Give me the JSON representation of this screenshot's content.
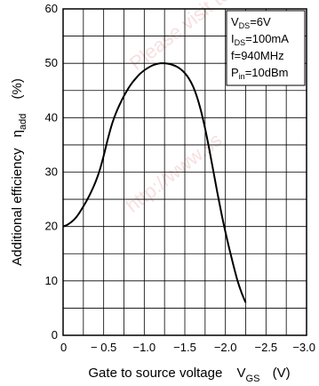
{
  "chart_data": {
    "type": "line",
    "xlabel": "Gate to source voltage",
    "xlabel_symbol": "V",
    "xlabel_sub": "GS",
    "xlabel_unit": "(V)",
    "ylabel": "Additional efficiency",
    "ylabel_symbol": "η",
    "ylabel_sub": "add",
    "ylabel_unit": "(%)",
    "xlim": [
      0,
      -3.0
    ],
    "ylim": [
      0,
      60
    ],
    "x_ticks": [
      "0",
      "− 0.5",
      "−1.0",
      "−1.5",
      "−2.0",
      "−2.5",
      "−3.0"
    ],
    "y_ticks": [
      "0",
      "10",
      "20",
      "30",
      "40",
      "50",
      "60"
    ],
    "grid": true,
    "conditions": [
      {
        "main": "V",
        "sub": "DS",
        "rest": "=6V"
      },
      {
        "main": "I",
        "sub": "DS",
        "rest": "=100mA"
      },
      {
        "main": "f=940MHz",
        "sub": "",
        "rest": ""
      },
      {
        "main": "P",
        "sub": "in",
        "rest": "=10dBm"
      }
    ],
    "series": [
      {
        "x": [
          0,
          -0.05,
          -0.1,
          -0.15,
          -0.2,
          -0.25,
          -0.3,
          -0.35,
          -0.4,
          -0.45,
          -0.5,
          -0.55,
          -0.6,
          -0.65,
          -0.7,
          -0.75,
          -0.8,
          -0.85,
          -0.9,
          -0.95,
          -1.0,
          -1.05,
          -1.1,
          -1.15,
          -1.2,
          -1.25,
          -1.3,
          -1.35,
          -1.4,
          -1.45,
          -1.5,
          -1.55,
          -1.6,
          -1.65,
          -1.7,
          -1.75,
          -1.8,
          -1.85,
          -1.9,
          -1.95,
          -2.0,
          -2.05,
          -2.1,
          -2.15,
          -2.2,
          -2.25
        ],
        "values": [
          20.0,
          20.3,
          20.8,
          21.5,
          22.5,
          23.7,
          25.0,
          26.5,
          28.2,
          30.3,
          33.0,
          36.0,
          38.7,
          40.8,
          42.5,
          44.0,
          45.3,
          46.4,
          47.3,
          48.1,
          48.7,
          49.2,
          49.6,
          49.85,
          50.0,
          50.0,
          49.9,
          49.7,
          49.4,
          48.9,
          48.2,
          47.2,
          45.8,
          43.8,
          41.2,
          38.0,
          34.3,
          30.3,
          26.3,
          22.5,
          19.0,
          15.8,
          12.8,
          10.0,
          7.8,
          6.0
        ],
        "color": "#000000"
      }
    ],
    "watermark_lines": [
      "Please visit to www.",
      "http://www.ss"
    ]
  }
}
